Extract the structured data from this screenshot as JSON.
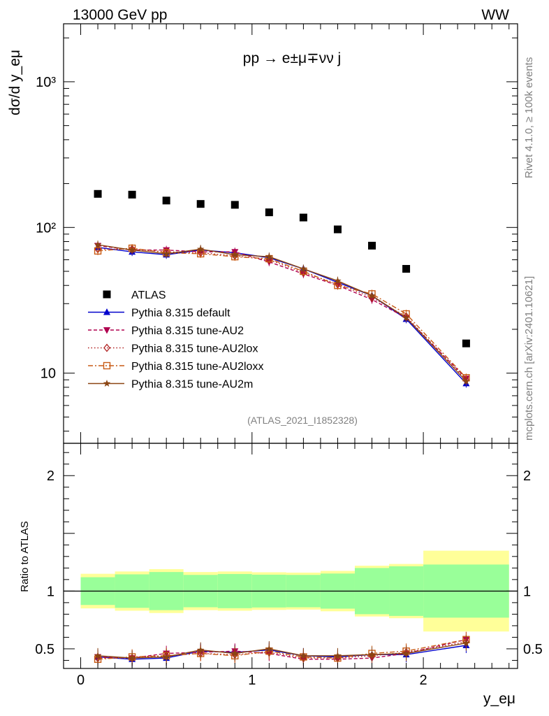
{
  "header": {
    "left_title": "13000 GeV pp",
    "right_title": "WW",
    "process": "pp → e±μ∓νν j",
    "rivet_label": "Rivet 4.1.0, ≥ 100k events",
    "mcplots_label": "mcplots.cern.ch [arXiv:2401.10621]",
    "analysis_id": "(ATLAS_2021_I1852328)"
  },
  "chart_data": [
    {
      "id": "main",
      "type": "scatter",
      "yscale": "log",
      "ylabel": "dσ/d y_eμ",
      "xlim": [
        -0.1,
        2.55
      ],
      "ylim": [
        3.3,
        2500
      ],
      "yticks": [
        {
          "value": 10,
          "label": "10"
        },
        {
          "value": 100,
          "label": "10²"
        },
        {
          "value": 1000,
          "label": "10³"
        }
      ],
      "x": [
        0.1,
        0.3,
        0.5,
        0.7,
        0.9,
        1.1,
        1.3,
        1.5,
        1.7,
        1.9,
        2.25
      ],
      "series": [
        {
          "name": "ATLAS",
          "color": "#000000",
          "marker": "square",
          "values": [
            170,
            168,
            153,
            145,
            143,
            127,
            117,
            97,
            75,
            52,
            16
          ]
        },
        {
          "name": "Pythia 8.315 default",
          "color": "#0000cc",
          "marker": "triangle-up",
          "dash": "",
          "values": [
            73,
            68,
            65,
            70,
            67,
            62,
            52,
            42,
            34,
            23.5,
            8.5
          ]
        },
        {
          "name": "Pythia 8.315 tune-AU2",
          "color": "#b0004f",
          "marker": "triangle-down",
          "dash": "5,3",
          "values": [
            75,
            70,
            70,
            68,
            68,
            58,
            48,
            40,
            32,
            24,
            9.2
          ]
        },
        {
          "name": "Pythia 8.315 tune-AU2lox",
          "color": "#b02020",
          "marker": "diamond",
          "dash": "1.5,3",
          "values": [
            71,
            71,
            68,
            67,
            64,
            60,
            49,
            41,
            33,
            24.5,
            9.0
          ]
        },
        {
          "name": "Pythia 8.315 tune-AU2loxx",
          "color": "#c85a14",
          "marker": "square-open",
          "dash": "7,3,2,3",
          "values": [
            69,
            72,
            67,
            66,
            63,
            61,
            50,
            40,
            35,
            25.5,
            9.3
          ]
        },
        {
          "name": "Pythia 8.315 tune-AU2m",
          "color": "#8b4513",
          "marker": "star",
          "dash": "",
          "values": [
            76,
            70,
            66,
            71,
            65,
            63,
            52,
            43,
            34,
            24,
            8.8
          ]
        }
      ]
    },
    {
      "id": "ratio",
      "type": "line",
      "ylabel": "Ratio to ATLAS",
      "xlabel": "y_eμ",
      "xlim": [
        -0.1,
        2.55
      ],
      "ylim": [
        0.33,
        2.28
      ],
      "yticks": [
        {
          "value": 0.5,
          "label": "0.5"
        },
        {
          "value": 1,
          "label": "1"
        },
        {
          "value": 2,
          "label": "2"
        }
      ],
      "xticks": [
        {
          "value": 0,
          "label": "0"
        },
        {
          "value": 1,
          "label": "1"
        },
        {
          "value": 2,
          "label": "2"
        }
      ],
      "bin_edges": [
        0,
        0.2,
        0.4,
        0.6,
        0.8,
        1.0,
        1.2,
        1.4,
        1.6,
        1.8,
        2.0,
        2.5
      ],
      "band_stat": [
        0.12,
        0.145,
        0.165,
        0.14,
        0.148,
        0.142,
        0.14,
        0.152,
        0.2,
        0.215,
        0.23
      ],
      "band_total": [
        0.15,
        0.17,
        0.19,
        0.165,
        0.17,
        0.163,
        0.16,
        0.175,
        0.22,
        0.235,
        0.35
      ],
      "series": [
        {
          "name": "Pythia 8.315 default",
          "values": [
            0.43,
            0.41,
            0.42,
            0.48,
            0.47,
            0.49,
            0.44,
            0.43,
            0.45,
            0.45,
            0.53
          ]
        },
        {
          "name": "Pythia 8.315 tune-AU2",
          "values": [
            0.43,
            0.42,
            0.46,
            0.47,
            0.48,
            0.46,
            0.41,
            0.41,
            0.42,
            0.46,
            0.58
          ]
        },
        {
          "name": "Pythia 8.315 tune-AU2lox",
          "values": [
            0.42,
            0.42,
            0.44,
            0.46,
            0.45,
            0.47,
            0.42,
            0.42,
            0.44,
            0.47,
            0.56
          ]
        },
        {
          "name": "Pythia 8.315 tune-AU2loxx",
          "values": [
            0.41,
            0.43,
            0.44,
            0.46,
            0.44,
            0.48,
            0.43,
            0.42,
            0.46,
            0.48,
            0.58
          ]
        },
        {
          "name": "Pythia 8.315 tune-AU2m",
          "values": [
            0.44,
            0.42,
            0.43,
            0.49,
            0.46,
            0.5,
            0.44,
            0.44,
            0.45,
            0.46,
            0.55
          ]
        }
      ]
    }
  ],
  "colors": {
    "stat_band": "#99ff99",
    "total_band": "#ffff99",
    "ratio_line": "#000000"
  }
}
